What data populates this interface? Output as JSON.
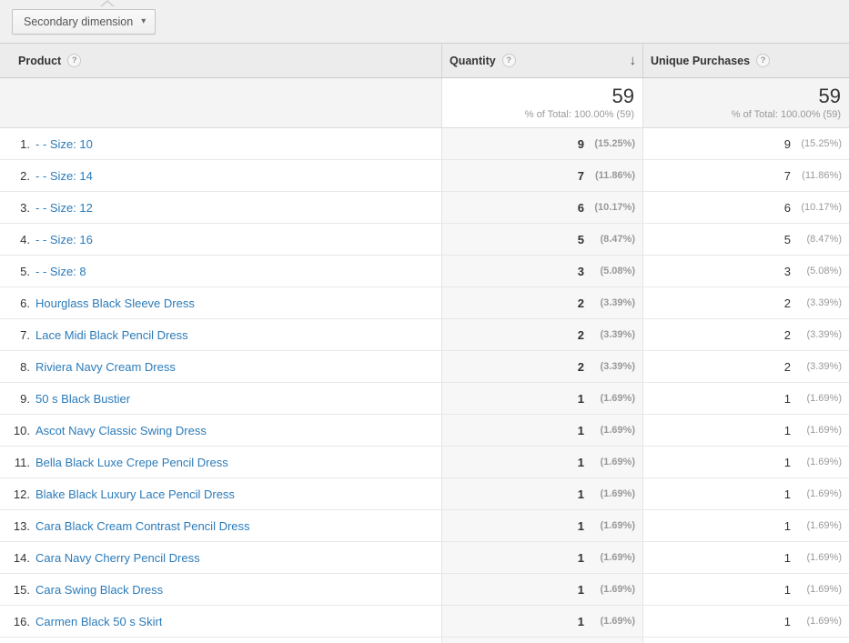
{
  "toolbar": {
    "secondary_dimension_label": "Secondary dimension"
  },
  "icons": {
    "caret_down": "▾",
    "sort_descending": "↓",
    "help": "?"
  },
  "colors": {
    "link_blue": "#2b7bb9",
    "header_bg": "#ececec",
    "sorted_column_bg": "#f7f7f7",
    "muted_text": "#999999",
    "dark_text": "#333333"
  },
  "table": {
    "columns": [
      {
        "label": "Product"
      },
      {
        "label": "Quantity",
        "sorted": "descending"
      },
      {
        "label": "Unique Purchases"
      }
    ],
    "summary": {
      "quantity": {
        "value": "59",
        "subtitle": "% of Total: 100.00% (59)"
      },
      "unique_purchases": {
        "value": "59",
        "subtitle": "% of Total: 100.00% (59)"
      }
    },
    "rows": [
      {
        "rank": "1.",
        "product": "- - Size: 10",
        "quantity": "9",
        "quantity_pct": "(15.25%)",
        "unique": "9",
        "unique_pct": "(15.25%)"
      },
      {
        "rank": "2.",
        "product": "- - Size: 14",
        "quantity": "7",
        "quantity_pct": "(11.86%)",
        "unique": "7",
        "unique_pct": "(11.86%)"
      },
      {
        "rank": "3.",
        "product": "- - Size: 12",
        "quantity": "6",
        "quantity_pct": "(10.17%)",
        "unique": "6",
        "unique_pct": "(10.17%)"
      },
      {
        "rank": "4.",
        "product": "- - Size: 16",
        "quantity": "5",
        "quantity_pct": "(8.47%)",
        "unique": "5",
        "unique_pct": "(8.47%)"
      },
      {
        "rank": "5.",
        "product": "- - Size: 8",
        "quantity": "3",
        "quantity_pct": "(5.08%)",
        "unique": "3",
        "unique_pct": "(5.08%)"
      },
      {
        "rank": "6.",
        "product": "Hourglass Black Sleeve Dress",
        "quantity": "2",
        "quantity_pct": "(3.39%)",
        "unique": "2",
        "unique_pct": "(3.39%)"
      },
      {
        "rank": "7.",
        "product": "Lace Midi Black Pencil Dress",
        "quantity": "2",
        "quantity_pct": "(3.39%)",
        "unique": "2",
        "unique_pct": "(3.39%)"
      },
      {
        "rank": "8.",
        "product": "Riviera Navy Cream Dress",
        "quantity": "2",
        "quantity_pct": "(3.39%)",
        "unique": "2",
        "unique_pct": "(3.39%)"
      },
      {
        "rank": "9.",
        "product": "50 s Black Bustier",
        "quantity": "1",
        "quantity_pct": "(1.69%)",
        "unique": "1",
        "unique_pct": "(1.69%)"
      },
      {
        "rank": "10.",
        "product": "Ascot Navy Classic Swing Dress",
        "quantity": "1",
        "quantity_pct": "(1.69%)",
        "unique": "1",
        "unique_pct": "(1.69%)"
      },
      {
        "rank": "11.",
        "product": "Bella Black Luxe Crepe Pencil Dress",
        "quantity": "1",
        "quantity_pct": "(1.69%)",
        "unique": "1",
        "unique_pct": "(1.69%)"
      },
      {
        "rank": "12.",
        "product": "Blake Black Luxury Lace Pencil Dress",
        "quantity": "1",
        "quantity_pct": "(1.69%)",
        "unique": "1",
        "unique_pct": "(1.69%)"
      },
      {
        "rank": "13.",
        "product": "Cara Black Cream Contrast Pencil Dress",
        "quantity": "1",
        "quantity_pct": "(1.69%)",
        "unique": "1",
        "unique_pct": "(1.69%)"
      },
      {
        "rank": "14.",
        "product": "Cara Navy Cherry Pencil Dress",
        "quantity": "1",
        "quantity_pct": "(1.69%)",
        "unique": "1",
        "unique_pct": "(1.69%)"
      },
      {
        "rank": "15.",
        "product": "Cara Swing Black Dress",
        "quantity": "1",
        "quantity_pct": "(1.69%)",
        "unique": "1",
        "unique_pct": "(1.69%)"
      },
      {
        "rank": "16.",
        "product": "Carmen Black 50 s Skirt",
        "quantity": "1",
        "quantity_pct": "(1.69%)",
        "unique": "1",
        "unique_pct": "(1.69%)"
      }
    ]
  }
}
